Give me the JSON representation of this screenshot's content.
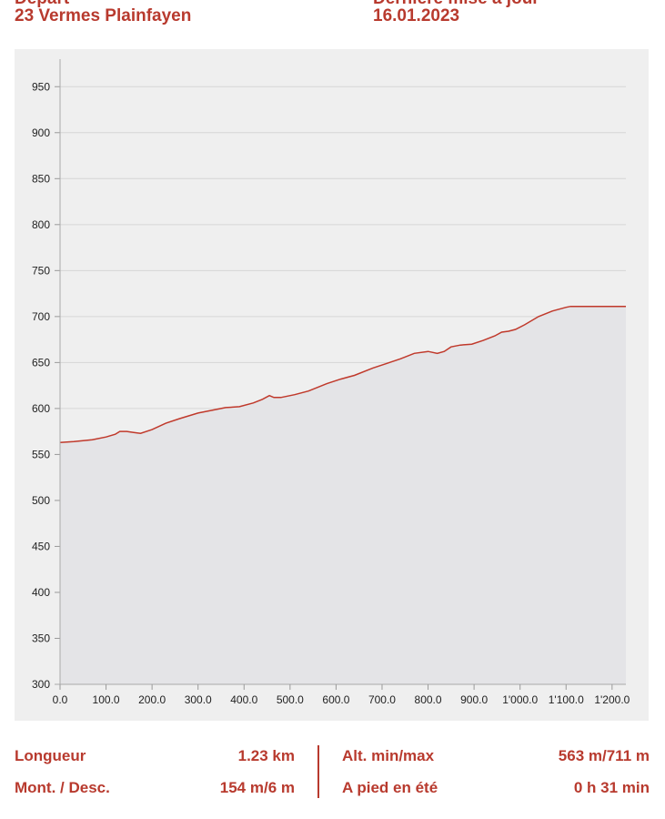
{
  "header": {
    "left_cut": "Départ",
    "left_title": "23 Vermes Plainfayen",
    "right_cut": "Dernière mise à jour",
    "right_date": "16.01.2023"
  },
  "chart_data": {
    "type": "area",
    "title": "",
    "xlabel": "",
    "ylabel": "",
    "xlim": [
      0,
      1230
    ],
    "ylim": [
      300,
      975
    ],
    "grid": true,
    "x_tick_labels": [
      "0.0",
      "100.0",
      "200.0",
      "300.0",
      "400.0",
      "500.0",
      "600.0",
      "700.0",
      "800.0",
      "900.0",
      "1'000.0",
      "1'100.0",
      "1'200.0"
    ],
    "x_ticks": [
      0,
      100,
      200,
      300,
      400,
      500,
      600,
      700,
      800,
      900,
      1000,
      1100,
      1200
    ],
    "y_tick_labels": [
      "300",
      "350",
      "400",
      "450",
      "500",
      "550",
      "600",
      "650",
      "700",
      "750",
      "800",
      "850",
      "900",
      "950"
    ],
    "y_ticks": [
      300,
      350,
      400,
      450,
      500,
      550,
      600,
      650,
      700,
      750,
      800,
      850,
      900,
      950
    ],
    "series": [
      {
        "color": "#c0392b",
        "fill": "#e4e4e7",
        "x": [
          0,
          30,
          70,
          100,
          120,
          130,
          145,
          160,
          175,
          200,
          230,
          260,
          300,
          330,
          360,
          390,
          420,
          440,
          455,
          465,
          480,
          510,
          540,
          580,
          610,
          640,
          680,
          710,
          740,
          770,
          800,
          820,
          835,
          850,
          870,
          895,
          920,
          945,
          960,
          975,
          990,
          1010,
          1040,
          1070,
          1100,
          1110,
          1150,
          1200,
          1230
        ],
        "y": [
          563,
          564,
          566,
          569,
          572,
          575,
          575,
          574,
          573,
          577,
          584,
          589,
          595,
          598,
          601,
          602,
          606,
          610,
          614,
          612,
          612,
          615,
          619,
          627,
          632,
          636,
          644,
          649,
          654,
          660,
          662,
          660,
          662,
          667,
          669,
          670,
          674,
          679,
          683,
          684,
          686,
          691,
          700,
          706,
          710,
          711,
          711,
          711,
          711
        ]
      }
    ]
  },
  "stats": {
    "length_label": "Longueur",
    "length_value": "1.23 km",
    "updown_label": "Mont. / Desc.",
    "updown_value": "154 m/6 m",
    "alt_label": "Alt. min/max",
    "alt_value": "563 m/711 m",
    "walk_label": "A pied en été",
    "walk_value": "0 h 31 min"
  },
  "colors": {
    "accent": "#b83a2e",
    "panel": "#efefef",
    "area": "#e4e4e7",
    "line": "#c0392b"
  }
}
